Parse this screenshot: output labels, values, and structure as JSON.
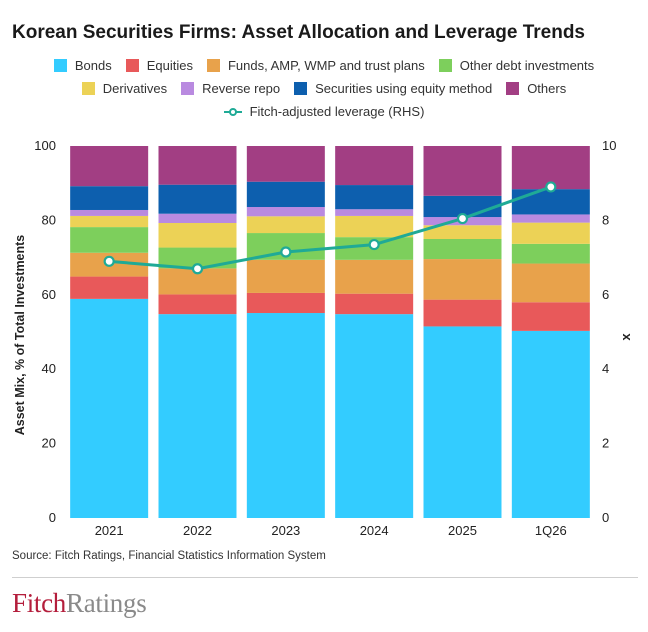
{
  "title": "Korean Securities Firms: Asset Allocation and Leverage Trends",
  "source": "Source: Fitch Ratings, Financial Statistics Information System",
  "logo": {
    "part1": "Fitch",
    "part2": "Ratings"
  },
  "legend": {
    "row1": [
      {
        "label": "Bonds",
        "color": "#33ccff"
      },
      {
        "label": "Equities",
        "color": "#e8595a"
      },
      {
        "label": "Funds, AMP, WMP and trust plans",
        "color": "#e8a24b"
      },
      {
        "label": "Other debt investments",
        "color": "#7dcf5c"
      }
    ],
    "row2": [
      {
        "label": "Derivatives",
        "color": "#ecd256"
      },
      {
        "label": "Reverse repo",
        "color": "#b98ae0"
      },
      {
        "label": "Securities using equity method",
        "color": "#0d5fae"
      },
      {
        "label": "Others",
        "color": "#a23e83"
      }
    ],
    "row3": [
      {
        "label": "Fitch-adjusted leverage (RHS)",
        "color": "#1faa96"
      }
    ]
  },
  "chart_data": {
    "type": "bar",
    "stacked": true,
    "title": "Korean Securities Firms: Asset Allocation and Leverage Trends",
    "ylabel": "Asset Mix, % of Total Investments",
    "y2label": "x",
    "ylim": [
      0,
      100
    ],
    "y2lim": [
      0,
      10
    ],
    "yticks": [
      0,
      20,
      40,
      60,
      80,
      100
    ],
    "y2ticks": [
      0,
      2,
      4,
      6,
      8,
      10
    ],
    "grid": false,
    "legend_position": "top",
    "categories": [
      "2021",
      "2022",
      "2023",
      "2024",
      "2025",
      "1Q26"
    ],
    "series": [
      {
        "name": "Bonds",
        "color": "#33ccff",
        "values": [
          58.9,
          54.8,
          55.1,
          54.8,
          51.5,
          50.3
        ]
      },
      {
        "name": "Equities",
        "color": "#e8595a",
        "values": [
          6.0,
          5.3,
          5.4,
          5.5,
          7.2,
          7.7
        ]
      },
      {
        "name": "Funds, AMP, WMP and trust plans",
        "color": "#e8a24b",
        "values": [
          6.4,
          7.0,
          8.9,
          9.1,
          10.9,
          10.4
        ]
      },
      {
        "name": "Other debt investments",
        "color": "#7dcf5c",
        "values": [
          6.9,
          5.6,
          7.2,
          6.1,
          5.4,
          5.3
        ]
      },
      {
        "name": "Derivatives",
        "color": "#ecd256",
        "values": [
          3.0,
          6.6,
          4.5,
          5.7,
          3.7,
          5.7
        ]
      },
      {
        "name": "Reverse repo",
        "color": "#b98ae0",
        "values": [
          1.6,
          2.5,
          2.5,
          1.8,
          2.2,
          2.2
        ]
      },
      {
        "name": "Securities using equity method",
        "color": "#0d5fae",
        "values": [
          6.4,
          7.8,
          6.8,
          6.5,
          5.7,
          6.8
        ]
      },
      {
        "name": "Others",
        "color": "#a23e83",
        "values": [
          10.8,
          10.4,
          9.6,
          10.5,
          13.4,
          11.6
        ]
      }
    ],
    "line": {
      "name": "Fitch-adjusted leverage (RHS)",
      "axis": "right",
      "color": "#1faa96",
      "values": [
        6.9,
        6.7,
        7.15,
        7.35,
        8.05,
        8.9
      ]
    }
  }
}
